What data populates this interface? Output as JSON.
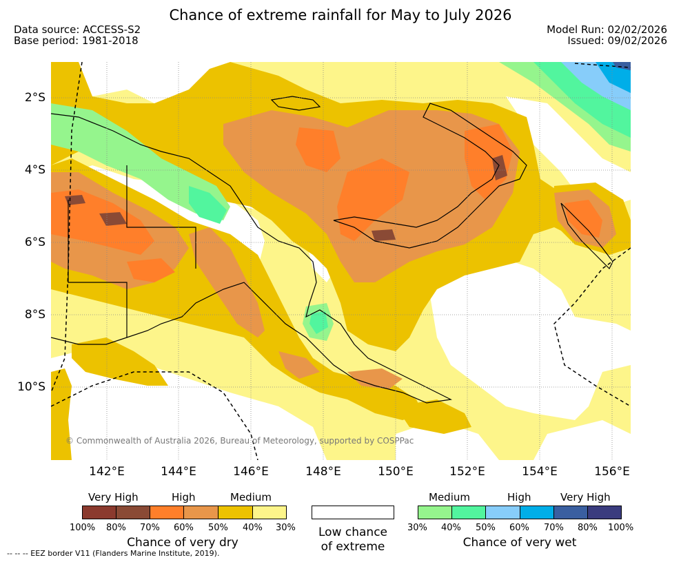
{
  "title": "Chance of extreme rainfall for May to July 2026",
  "data_source": "Data source: ACCESS-S2",
  "base_period": "Base period: 1981-2018",
  "model_run": "Model Run: 02/02/2026",
  "issued": "Issued: 09/02/2026",
  "lat_labels": [
    "2°S",
    "4°S",
    "6°S",
    "8°S",
    "10°S"
  ],
  "lon_labels": [
    "142°E",
    "144°E",
    "146°E",
    "148°E",
    "150°E",
    "152°E",
    "154°E",
    "156°E"
  ],
  "copyright": "© Commonwealth of Australia 2026, Bureau of Meteorology, supported by COSPPac",
  "legend": {
    "dry": {
      "headers": [
        "Very High",
        "High",
        "Medium"
      ],
      "ticks": [
        "100%",
        "80%",
        "70%",
        "60%",
        "50%",
        "40%",
        "30%"
      ],
      "caption": "Chance of very dry",
      "colors": [
        "#8b3a2e",
        "#8a4a35",
        "#ff7f2a",
        "#e8964a",
        "#ecc200",
        "#fdf58a"
      ]
    },
    "low": {
      "line1": "Low chance",
      "line2": "of extreme"
    },
    "wet": {
      "headers": [
        "Medium",
        "High",
        "Very High"
      ],
      "ticks": [
        "30%",
        "40%",
        "50%",
        "60%",
        "70%",
        "80%",
        "100%"
      ],
      "caption": "Chance of very wet",
      "colors": [
        "#95f58d",
        "#52f59e",
        "#87cdfa",
        "#00aee8",
        "#3a5fa0",
        "#3a3c7e"
      ]
    }
  },
  "footer": "--  --  -- EEZ border V11 (Flanders Marine Institute, 2019)."
}
